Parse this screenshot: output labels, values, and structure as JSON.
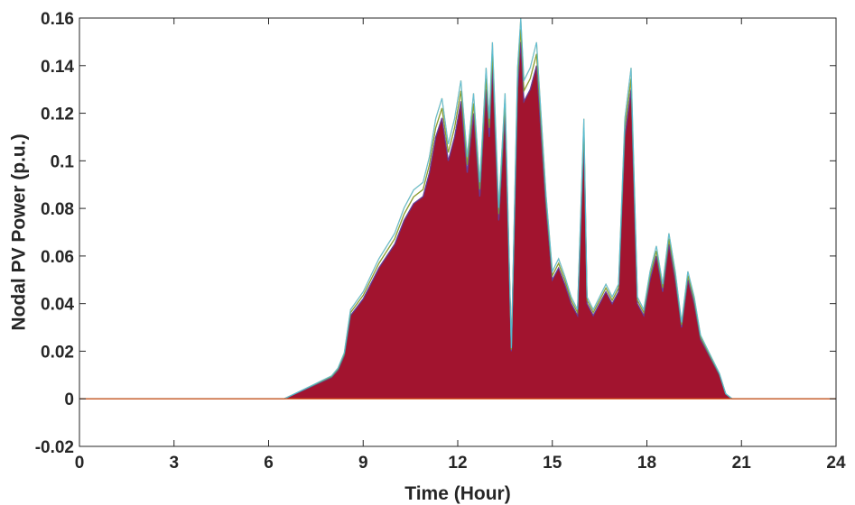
{
  "chart_data": {
    "type": "area",
    "title": "",
    "xlabel": "Time (Hour)",
    "ylabel": "Nodal PV Power (p.u.)",
    "xlim": [
      0,
      24
    ],
    "ylim": [
      -0.02,
      0.16
    ],
    "xticks": [
      0,
      3,
      6,
      9,
      12,
      15,
      18,
      21,
      24
    ],
    "yticks": [
      -0.02,
      0,
      0.02,
      0.04,
      0.06,
      0.08,
      0.1,
      0.12,
      0.14,
      0.16
    ],
    "ytick_labels": [
      "-0.02",
      "0",
      "0.02",
      "0.04",
      "0.06",
      "0.08",
      "0.1",
      "0.12",
      "0.14",
      "0.16"
    ],
    "grid": false,
    "legend": "none",
    "colors": {
      "fill": "#A2142F",
      "series_edges": [
        "#0072BD",
        "#D95319",
        "#EDB120",
        "#7E2F8E",
        "#77AC30",
        "#4DBEEE"
      ],
      "zero_line": "#D95319",
      "axes": "#262626"
    },
    "series": [
      {
        "x": [
          0,
          6.5,
          7.0,
          7.5,
          8.0,
          8.2,
          8.4,
          8.6,
          9.0,
          9.5,
          10.0,
          10.3,
          10.6,
          10.9,
          11.1,
          11.3,
          11.5,
          11.7,
          11.9,
          12.1,
          12.3,
          12.5,
          12.7,
          12.9,
          13.0,
          13.1,
          13.3,
          13.5,
          13.7,
          13.9,
          14.0,
          14.1,
          14.3,
          14.5,
          14.6,
          14.8,
          15.0,
          15.2,
          15.4,
          15.6,
          15.8,
          16.0,
          16.1,
          16.3,
          16.5,
          16.7,
          16.9,
          17.1,
          17.3,
          17.5,
          17.7,
          17.9,
          18.1,
          18.3,
          18.5,
          18.7,
          18.9,
          19.1,
          19.3,
          19.5,
          19.7,
          19.9,
          20.1,
          20.3,
          20.5,
          20.7,
          21.0,
          24
        ],
        "values": [
          0,
          0,
          0.003,
          0.006,
          0.009,
          0.012,
          0.018,
          0.035,
          0.042,
          0.055,
          0.065,
          0.075,
          0.082,
          0.085,
          0.095,
          0.11,
          0.118,
          0.1,
          0.11,
          0.125,
          0.095,
          0.12,
          0.085,
          0.13,
          0.11,
          0.14,
          0.075,
          0.12,
          0.02,
          0.13,
          0.15,
          0.125,
          0.13,
          0.14,
          0.12,
          0.08,
          0.05,
          0.055,
          0.048,
          0.04,
          0.035,
          0.11,
          0.04,
          0.035,
          0.04,
          0.045,
          0.04,
          0.045,
          0.11,
          0.13,
          0.04,
          0.035,
          0.05,
          0.06,
          0.045,
          0.065,
          0.05,
          0.03,
          0.05,
          0.04,
          0.025,
          0.02,
          0.015,
          0.01,
          0.002,
          0,
          0,
          0
        ]
      }
    ]
  }
}
